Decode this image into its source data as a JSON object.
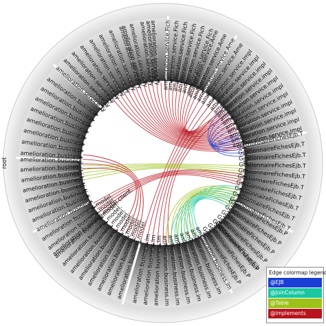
{
  "diagram": {
    "type": "hierarchical-edge-bundling",
    "root_label": "root",
    "labels": {
      "service_package": "amelioration.service",
      "service_fiche": "amelioration.service.Fich",
      "service_ame": "amelioration.service.Ame",
      "service_impl": "amelioration.service.impl",
      "service_t": "amelioration.service.T",
      "service_ty": "amelioration.service.Ty",
      "business": "amelioration.business",
      "business_trunc": "amelioration.business.",
      "business_im": "amelioration.business.im",
      "business_model": "amelioration.business.model.",
      "business_model_client": "amelioration.business.model.client.",
      "gestionnaire": "GestionnaireFichesEjb.T",
      "gestionnaire_p": "GestionnaireFichesEjb.P",
      "gestionnaire_short": "GestionnaireFichesEjb"
    }
  },
  "legend": {
    "title": "Edge colormap legend",
    "items": [
      {
        "label": "@EJB",
        "color": "#1a3fd6"
      },
      {
        "label": "@JoinColumn",
        "color": "#1ac7a0"
      },
      {
        "label": "@Table",
        "color": "#9cc21a"
      },
      {
        "label": "@implements",
        "color": "#b8141c"
      }
    ]
  }
}
